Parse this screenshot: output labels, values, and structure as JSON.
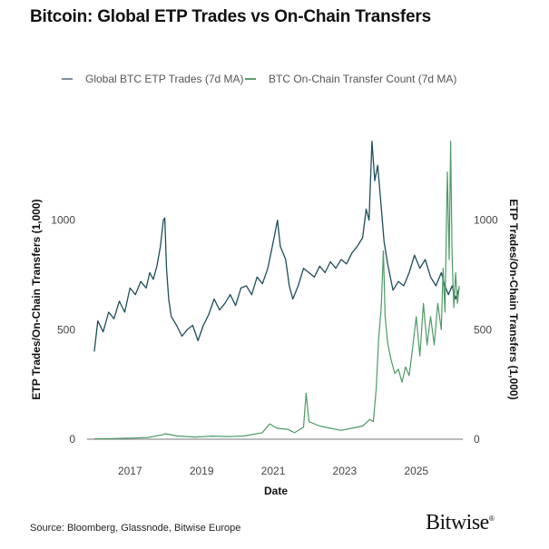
{
  "chart_data": {
    "type": "line",
    "title": "Bitcoin: Global ETP Trades vs On-Chain Transfers",
    "xlabel": "Date",
    "ylabel_left": "ETP Trades/On-Chain Transfers (1,000)",
    "ylabel_right": "ETP Trades/On-Chain Transfers (1,000)",
    "xlim": [
      2015.8,
      2026.3
    ],
    "ylim": [
      0,
      1400
    ],
    "x_ticks": [
      2017,
      2019,
      2021,
      2023,
      2025
    ],
    "y_ticks": [
      0,
      500,
      1000
    ],
    "grid": false,
    "legend_position": "top",
    "series": [
      {
        "name": "Global BTC ETP Trades (7d MA)",
        "color": "#7f8c99",
        "points": [
          [
            2016.0,
            400
          ],
          [
            2016.1,
            540
          ],
          [
            2016.25,
            490
          ],
          [
            2016.4,
            580
          ],
          [
            2016.55,
            550
          ],
          [
            2016.7,
            630
          ],
          [
            2016.85,
            580
          ],
          [
            2017.0,
            690
          ],
          [
            2017.15,
            660
          ],
          [
            2017.3,
            720
          ],
          [
            2017.45,
            690
          ],
          [
            2017.55,
            760
          ],
          [
            2017.65,
            730
          ],
          [
            2017.75,
            790
          ],
          [
            2017.85,
            880
          ],
          [
            2017.93,
            1000
          ],
          [
            2017.97,
            1010
          ],
          [
            2018.02,
            780
          ],
          [
            2018.08,
            640
          ],
          [
            2018.15,
            560
          ],
          [
            2018.3,
            520
          ],
          [
            2018.45,
            470
          ],
          [
            2018.6,
            500
          ],
          [
            2018.75,
            520
          ],
          [
            2018.9,
            450
          ],
          [
            2019.05,
            520
          ],
          [
            2019.2,
            570
          ],
          [
            2019.35,
            640
          ],
          [
            2019.5,
            590
          ],
          [
            2019.65,
            620
          ],
          [
            2019.8,
            660
          ],
          [
            2019.95,
            610
          ],
          [
            2020.1,
            690
          ],
          [
            2020.25,
            700
          ],
          [
            2020.4,
            660
          ],
          [
            2020.55,
            740
          ],
          [
            2020.7,
            710
          ],
          [
            2020.85,
            780
          ],
          [
            2020.95,
            860
          ],
          [
            2021.05,
            940
          ],
          [
            2021.12,
            1000
          ],
          [
            2021.2,
            880
          ],
          [
            2021.35,
            820
          ],
          [
            2021.45,
            700
          ],
          [
            2021.55,
            640
          ],
          [
            2021.7,
            700
          ],
          [
            2021.85,
            780
          ],
          [
            2022.0,
            760
          ],
          [
            2022.15,
            740
          ],
          [
            2022.3,
            790
          ],
          [
            2022.45,
            760
          ],
          [
            2022.6,
            810
          ],
          [
            2022.75,
            780
          ],
          [
            2022.9,
            820
          ],
          [
            2023.05,
            800
          ],
          [
            2023.2,
            850
          ],
          [
            2023.35,
            880
          ],
          [
            2023.5,
            920
          ],
          [
            2023.6,
            1050
          ],
          [
            2023.68,
            1000
          ],
          [
            2023.76,
            1360
          ],
          [
            2023.84,
            1180
          ],
          [
            2023.92,
            1250
          ],
          [
            2024.0,
            1100
          ],
          [
            2024.1,
            900
          ],
          [
            2024.2,
            800
          ],
          [
            2024.35,
            680
          ],
          [
            2024.5,
            720
          ],
          [
            2024.65,
            700
          ],
          [
            2024.8,
            760
          ],
          [
            2024.95,
            840
          ],
          [
            2025.1,
            780
          ],
          [
            2025.25,
            820
          ],
          [
            2025.4,
            740
          ],
          [
            2025.55,
            700
          ],
          [
            2025.7,
            760
          ],
          [
            2025.8,
            700
          ],
          [
            2025.9,
            660
          ],
          [
            2026.0,
            700
          ],
          [
            2026.1,
            640
          ],
          [
            2026.2,
            690
          ]
        ]
      },
      {
        "name": "BTC On-Chain Transfer Count (7d MA)",
        "color": "#5a9e6f",
        "points": [
          [
            2016.0,
            2
          ],
          [
            2016.5,
            3
          ],
          [
            2017.0,
            5
          ],
          [
            2017.5,
            8
          ],
          [
            2017.9,
            20
          ],
          [
            2018.0,
            25
          ],
          [
            2018.3,
            15
          ],
          [
            2018.8,
            10
          ],
          [
            2019.3,
            14
          ],
          [
            2019.8,
            12
          ],
          [
            2020.2,
            15
          ],
          [
            2020.7,
            30
          ],
          [
            2020.9,
            70
          ],
          [
            2021.1,
            50
          ],
          [
            2021.4,
            45
          ],
          [
            2021.6,
            30
          ],
          [
            2021.85,
            55
          ],
          [
            2021.92,
            210
          ],
          [
            2022.0,
            80
          ],
          [
            2022.3,
            60
          ],
          [
            2022.6,
            50
          ],
          [
            2022.9,
            40
          ],
          [
            2023.2,
            50
          ],
          [
            2023.5,
            60
          ],
          [
            2023.7,
            90
          ],
          [
            2023.8,
            80
          ],
          [
            2023.88,
            230
          ],
          [
            2023.95,
            460
          ],
          [
            2024.02,
            600
          ],
          [
            2024.08,
            860
          ],
          [
            2024.13,
            560
          ],
          [
            2024.2,
            440
          ],
          [
            2024.3,
            360
          ],
          [
            2024.4,
            300
          ],
          [
            2024.5,
            320
          ],
          [
            2024.6,
            260
          ],
          [
            2024.7,
            330
          ],
          [
            2024.8,
            290
          ],
          [
            2024.9,
            420
          ],
          [
            2025.0,
            560
          ],
          [
            2025.1,
            380
          ],
          [
            2025.2,
            620
          ],
          [
            2025.3,
            430
          ],
          [
            2025.4,
            560
          ],
          [
            2025.5,
            430
          ],
          [
            2025.6,
            620
          ],
          [
            2025.7,
            500
          ],
          [
            2025.75,
            780
          ],
          [
            2025.8,
            580
          ],
          [
            2025.87,
            1220
          ],
          [
            2025.92,
            820
          ],
          [
            2025.96,
            1360
          ],
          [
            2026.0,
            840
          ],
          [
            2026.05,
            600
          ],
          [
            2026.1,
            760
          ],
          [
            2026.15,
            620
          ],
          [
            2026.2,
            700
          ]
        ]
      }
    ]
  },
  "source": "Source: Bloomberg, Glassnode, Bitwise Europe",
  "brand": "Bitwise",
  "brand_mark": "®"
}
